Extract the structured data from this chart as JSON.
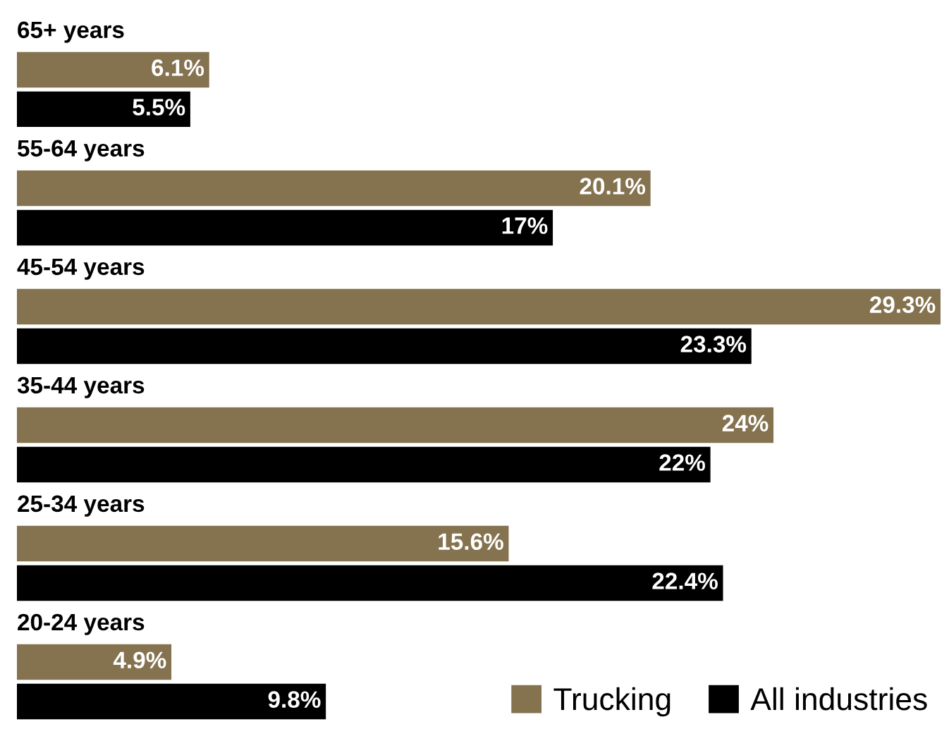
{
  "chart_data": {
    "type": "bar",
    "orientation": "horizontal",
    "categories": [
      "65+ years",
      "55-64 years",
      "45-54 years",
      "35-44 years",
      "25-34 years",
      "20-24 years"
    ],
    "series": [
      {
        "name": "Trucking",
        "color": "#857350",
        "values": [
          6.1,
          20.1,
          29.3,
          24,
          15.6,
          4.9
        ],
        "value_labels": [
          "6.1%",
          "20.1%",
          "29.3%",
          "24%",
          "15.6%",
          "4.9%"
        ]
      },
      {
        "name": "All industries",
        "color": "#000000",
        "values": [
          5.5,
          17,
          23.3,
          22,
          22.4,
          9.8
        ],
        "value_labels": [
          "5.5%",
          "17%",
          "23.3%",
          "22%",
          "22.4%",
          "9.8%"
        ]
      }
    ],
    "legend": "bottom right"
  }
}
